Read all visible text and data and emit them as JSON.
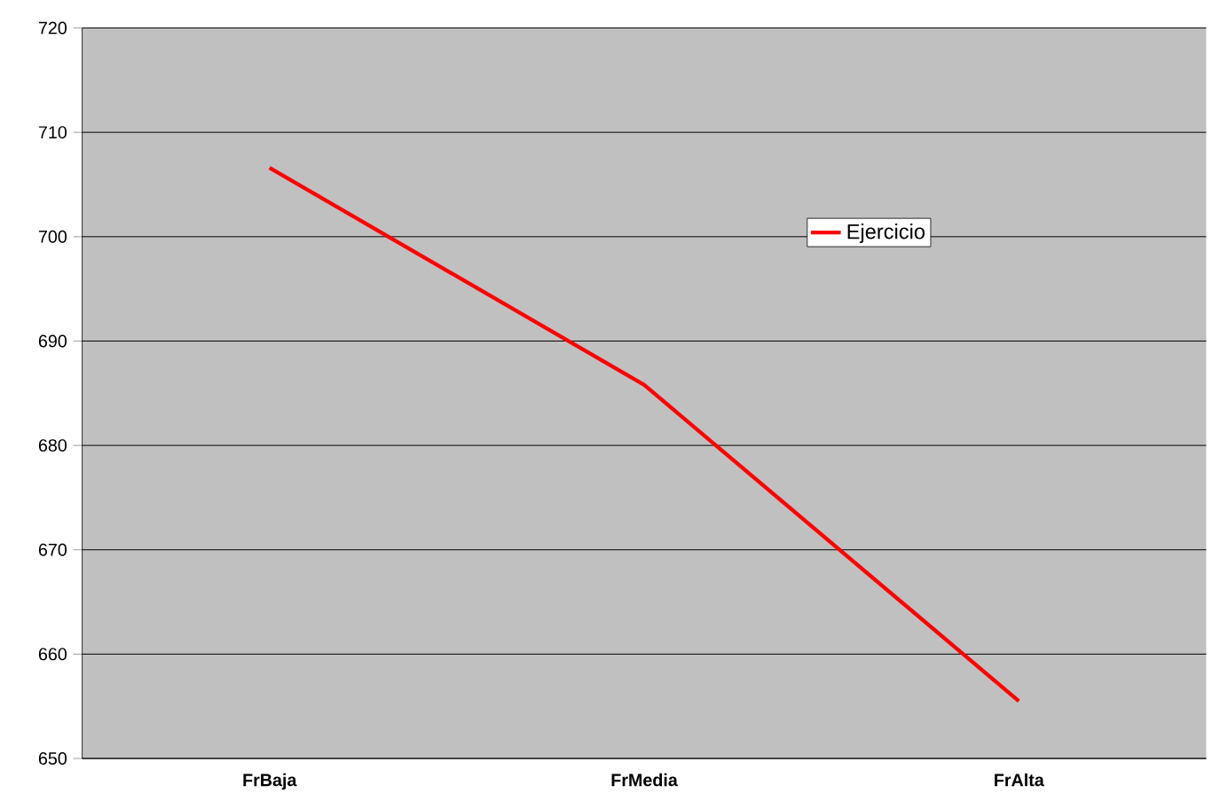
{
  "chart_data": {
    "type": "line",
    "categories": [
      "FrBaja",
      "FrMedia",
      "FrAlta"
    ],
    "series": [
      {
        "name": "Ejercicio",
        "color": "#ff0000",
        "values": [
          706.6,
          685.8,
          655.5
        ]
      }
    ],
    "ylim": [
      650,
      720
    ],
    "yticks": [
      650,
      660,
      670,
      680,
      690,
      700,
      710,
      720
    ],
    "grid": "y",
    "legend": "top right",
    "marker": "none",
    "line_style": "solid"
  }
}
